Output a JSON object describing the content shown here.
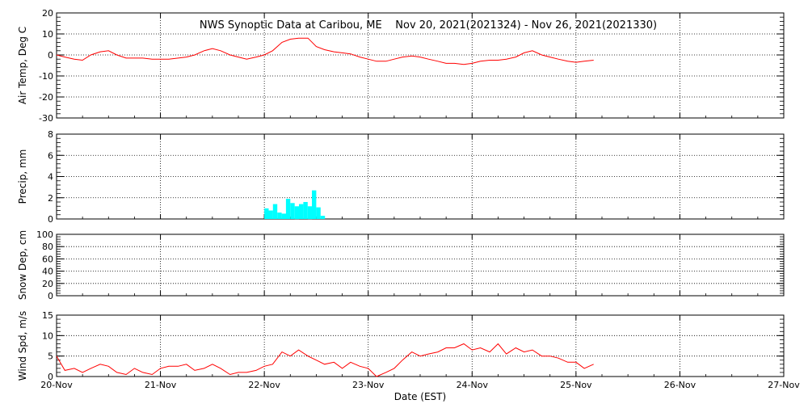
{
  "chart_data": {
    "title": "NWS Synoptic Data at Caribou, ME    Nov 20, 2021(2021324) - Nov 26, 2021(2021330)",
    "xlabel": "Date (EST)",
    "x_tick_labels": [
      "20-Nov",
      "21-Nov",
      "22-Nov",
      "23-Nov",
      "24-Nov",
      "25-Nov",
      "26-Nov",
      "27-Nov"
    ],
    "xlim": [
      "2021-11-20",
      "2021-11-27"
    ],
    "grid": true,
    "colors": {
      "temp": "#ff0000",
      "precip": "#00ffff",
      "wind": "#ff0000"
    },
    "panels": [
      {
        "id": "temp",
        "type": "line",
        "ylabel": "Air Temp, Deg C",
        "ylim": [
          -30,
          20
        ],
        "yticks": [
          -30,
          -20,
          -10,
          0,
          10,
          20
        ],
        "x_days": [
          0,
          0.08,
          0.17,
          0.25,
          0.33,
          0.42,
          0.5,
          0.58,
          0.67,
          0.75,
          0.83,
          0.92,
          1.0,
          1.08,
          1.17,
          1.25,
          1.33,
          1.42,
          1.5,
          1.58,
          1.67,
          1.75,
          1.83,
          1.92,
          2.0,
          2.08,
          2.17,
          2.25,
          2.33,
          2.42,
          2.5,
          2.58,
          2.67,
          2.75,
          2.83,
          2.92,
          3.0,
          3.08,
          3.17,
          3.25,
          3.33,
          3.42,
          3.5,
          3.58,
          3.67,
          3.75,
          3.83,
          3.92,
          4.0,
          4.08,
          4.17,
          4.25,
          4.33,
          4.42,
          4.5,
          4.58,
          4.67,
          4.75,
          4.83,
          4.92,
          5.0,
          5.08,
          5.17
        ],
        "values": [
          0,
          -1,
          -2,
          -2.5,
          0,
          1.5,
          2,
          0,
          -1.5,
          -1.5,
          -1.5,
          -2,
          -2,
          -2,
          -1.5,
          -1,
          0,
          2,
          3,
          2,
          0,
          -1,
          -2,
          -1,
          0,
          2,
          6,
          7.5,
          8,
          8,
          4,
          2.5,
          1.5,
          1,
          0.5,
          -1,
          -2,
          -3,
          -3,
          -2,
          -1,
          -0.5,
          -1,
          -2,
          -3,
          -4,
          -4,
          -4.5,
          -4,
          -3,
          -2.5,
          -2.5,
          -2,
          -1,
          1,
          2,
          0,
          -1,
          -2,
          -3,
          -3.5,
          -3,
          -2.5
        ]
      },
      {
        "id": "precip",
        "type": "bar",
        "ylabel": "Precip, mm",
        "ylim": [
          0,
          8
        ],
        "yticks": [
          0,
          2,
          4,
          6,
          8
        ],
        "x_days": [
          2.0,
          2.042,
          2.083,
          2.125,
          2.167,
          2.208,
          2.25,
          2.292,
          2.333,
          2.375,
          2.417,
          2.458,
          2.5,
          2.542
        ],
        "values": [
          1.0,
          0.8,
          1.4,
          0.6,
          0.5,
          1.9,
          1.5,
          1.2,
          1.4,
          1.6,
          1.2,
          2.7,
          1.1,
          0.3
        ]
      },
      {
        "id": "snow",
        "type": "line",
        "ylabel": "Snow Dep, cm",
        "ylim": [
          0,
          100
        ],
        "yticks": [
          0,
          20,
          40,
          60,
          80,
          100
        ],
        "x_days": [],
        "values": []
      },
      {
        "id": "wind",
        "type": "line",
        "ylabel": "Wind Spd, m/s",
        "ylim": [
          0,
          15
        ],
        "yticks": [
          0,
          5,
          10,
          15
        ],
        "x_days": [
          0,
          0.08,
          0.17,
          0.25,
          0.33,
          0.42,
          0.5,
          0.58,
          0.67,
          0.75,
          0.83,
          0.92,
          1.0,
          1.08,
          1.17,
          1.25,
          1.33,
          1.42,
          1.5,
          1.58,
          1.67,
          1.75,
          1.83,
          1.92,
          2.0,
          2.08,
          2.17,
          2.25,
          2.33,
          2.42,
          2.5,
          2.58,
          2.67,
          2.75,
          2.83,
          2.92,
          3.0,
          3.08,
          3.17,
          3.25,
          3.33,
          3.42,
          3.5,
          3.58,
          3.67,
          3.75,
          3.83,
          3.92,
          4.0,
          4.08,
          4.17,
          4.25,
          4.33,
          4.42,
          4.5,
          4.58,
          4.67,
          4.75,
          4.83,
          4.92,
          5.0,
          5.08,
          5.17
        ],
        "values": [
          5,
          1.5,
          2,
          1,
          2,
          3,
          2.5,
          1,
          0.5,
          2,
          1,
          0.5,
          2,
          2.5,
          2.5,
          3,
          1.5,
          2,
          3,
          2,
          0.5,
          1,
          1,
          1.5,
          2.5,
          3,
          6,
          5,
          6.5,
          5,
          4,
          3,
          3.5,
          2,
          3.5,
          2.5,
          2,
          0,
          1,
          2,
          4,
          6,
          5,
          5.5,
          6,
          7,
          7,
          8,
          6.5,
          7,
          6,
          8,
          5.5,
          7,
          6,
          6.5,
          5,
          5,
          4.5,
          3.5,
          3.5,
          2,
          3
        ]
      }
    ]
  }
}
